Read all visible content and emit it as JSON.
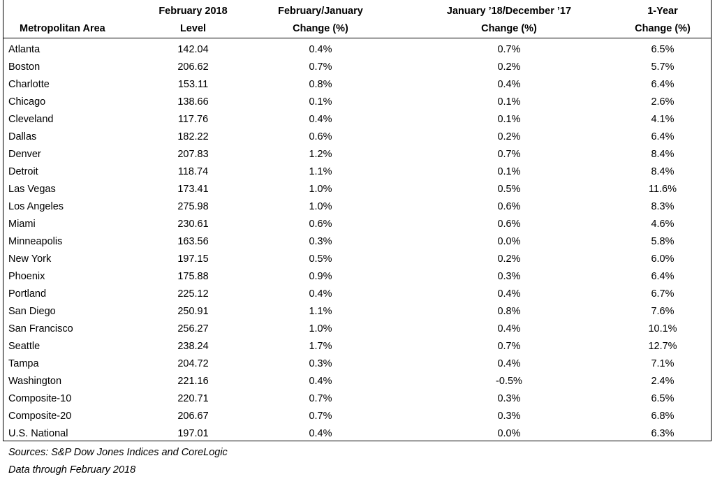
{
  "headers": {
    "area": [
      "Metropolitan Area"
    ],
    "level": [
      "February 2018",
      "Level"
    ],
    "monthly": [
      "February/January",
      "Change (%)"
    ],
    "prior": [
      "January ’18/December ’17",
      "Change (%)"
    ],
    "yearly": [
      "1-Year",
      "Change (%)"
    ]
  },
  "rows": [
    [
      "Atlanta",
      "142.04",
      "0.4%",
      "0.7%",
      "6.5%"
    ],
    [
      "Boston",
      "206.62",
      "0.7%",
      "0.2%",
      "5.7%"
    ],
    [
      "Charlotte",
      "153.11",
      "0.8%",
      "0.4%",
      "6.4%"
    ],
    [
      "Chicago",
      "138.66",
      "0.1%",
      "0.1%",
      "2.6%"
    ],
    [
      "Cleveland",
      "117.76",
      "0.4%",
      "0.1%",
      "4.1%"
    ],
    [
      "Dallas",
      "182.22",
      "0.6%",
      "0.2%",
      "6.4%"
    ],
    [
      "Denver",
      "207.83",
      "1.2%",
      "0.7%",
      "8.4%"
    ],
    [
      "Detroit",
      "118.74",
      "1.1%",
      "0.1%",
      "8.4%"
    ],
    [
      "Las Vegas",
      "173.41",
      "1.0%",
      "0.5%",
      "11.6%"
    ],
    [
      "Los Angeles",
      "275.98",
      "1.0%",
      "0.6%",
      "8.3%"
    ],
    [
      "Miami",
      "230.61",
      "0.6%",
      "0.6%",
      "4.6%"
    ],
    [
      "Minneapolis",
      "163.56",
      "0.3%",
      "0.0%",
      "5.8%"
    ],
    [
      "New York",
      "197.15",
      "0.5%",
      "0.2%",
      "6.0%"
    ],
    [
      "Phoenix",
      "175.88",
      "0.9%",
      "0.3%",
      "6.4%"
    ],
    [
      "Portland",
      "225.12",
      "0.4%",
      "0.4%",
      "6.7%"
    ],
    [
      "San Diego",
      "250.91",
      "1.1%",
      "0.8%",
      "7.6%"
    ],
    [
      "San Francisco",
      "256.27",
      "1.0%",
      "0.4%",
      "10.1%"
    ],
    [
      "Seattle",
      "238.24",
      "1.7%",
      "0.7%",
      "12.7%"
    ],
    [
      "Tampa",
      "204.72",
      "0.3%",
      "0.4%",
      "7.1%"
    ],
    [
      "Washington",
      "221.16",
      "0.4%",
      "-0.5%",
      "2.4%"
    ],
    [
      "Composite-10",
      "220.71",
      "0.7%",
      "0.3%",
      "6.5%"
    ],
    [
      "Composite-20",
      "206.67",
      "0.7%",
      "0.3%",
      "6.8%"
    ],
    [
      "U.S. National",
      "197.01",
      "0.4%",
      "0.0%",
      "6.3%"
    ]
  ],
  "notes": {
    "sources": "Sources: S&P Dow Jones Indices and CoreLogic",
    "data_through": "Data through February 2018"
  }
}
